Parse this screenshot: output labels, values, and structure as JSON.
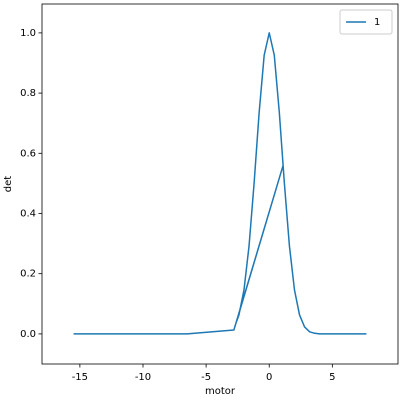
{
  "chart_data": {
    "type": "line",
    "xlabel": "motor",
    "ylabel": "det",
    "x": [
      -15.5,
      -6.5,
      -2.8,
      1.1,
      -2.6,
      -2.4,
      -2.0,
      -1.6,
      -1.2,
      -0.8,
      -0.4,
      0,
      0.4,
      0.8,
      1.2,
      1.6,
      2.0,
      2.4,
      2.8,
      3.2,
      3.6,
      4.0,
      7.7
    ],
    "series": [
      {
        "name": "1",
        "color": "#1f77b4",
        "values": [
          0,
          0,
          0.013,
          0.56,
          0.04,
          0.063,
          0.146,
          0.292,
          0.5,
          0.735,
          0.926,
          1,
          0.926,
          0.735,
          0.5,
          0.292,
          0.146,
          0.063,
          0.023,
          0.007,
          0.002,
          0,
          0
        ]
      }
    ],
    "xlim": [
      -18,
      10.2
    ],
    "ylim": [
      -0.1,
      1.096
    ],
    "xticks": [
      -15,
      -10,
      -5,
      0,
      5
    ],
    "yticks": [
      {
        "value": 0,
        "label": "0.0"
      },
      {
        "value": 0.2,
        "label": "0.2"
      },
      {
        "value": 0.4,
        "label": "0.4"
      },
      {
        "value": 0.6,
        "label": "0.6"
      },
      {
        "value": 0.8,
        "label": "0.8"
      },
      {
        "value": 1,
        "label": "1.0"
      }
    ],
    "legend": "upper right",
    "grid": false
  }
}
